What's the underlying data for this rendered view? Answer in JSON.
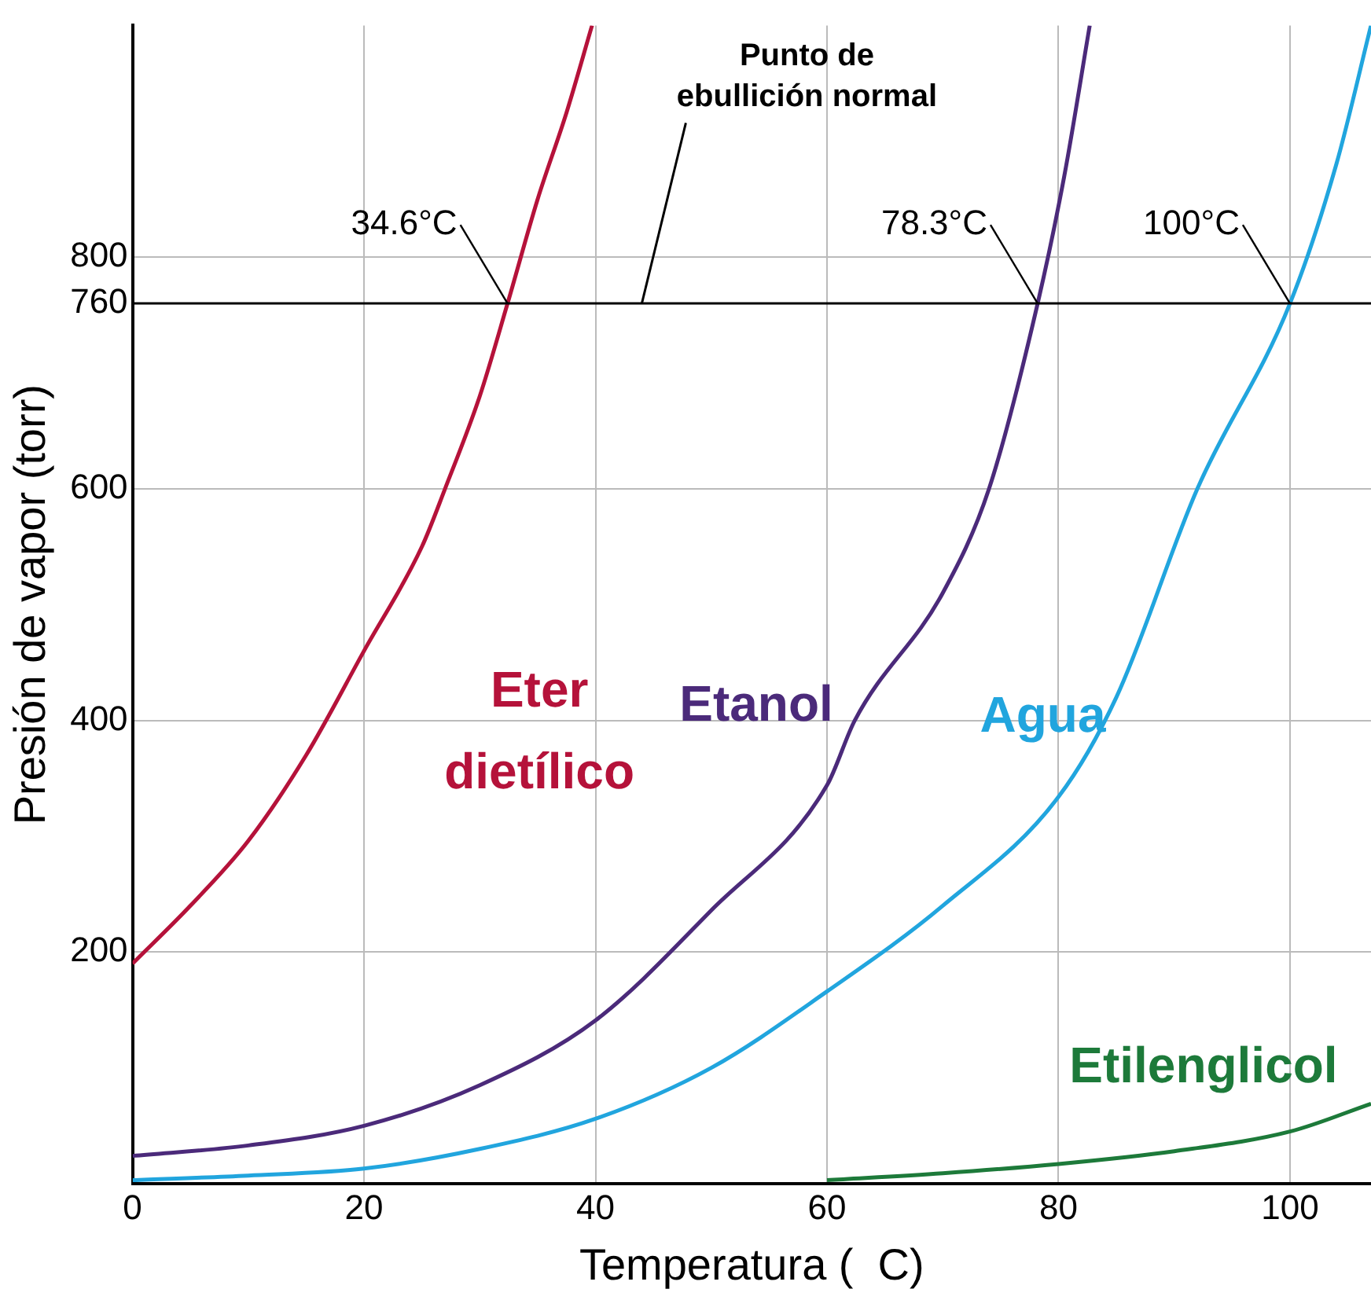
{
  "chart_data": {
    "type": "line",
    "xlabel": "Temperatura (  C)",
    "ylabel": "Presión de vapor (torr)",
    "xlim": [
      0,
      107
    ],
    "ylim": [
      0,
      1000
    ],
    "xticks": [
      0,
      20,
      40,
      60,
      80,
      100
    ],
    "yticks": [
      200,
      400,
      600,
      760,
      800
    ],
    "grid": true,
    "legend": false,
    "marker": "none",
    "line_style": "solid",
    "series": [
      {
        "name": "Eter dietílico",
        "color": "#b5123a",
        "x": [
          0,
          5,
          10,
          15,
          20,
          25,
          27,
          30,
          32.4,
          35,
          37.5,
          39.7
        ],
        "values": [
          190,
          240,
          296,
          370,
          460,
          550,
          600,
          680,
          760,
          850,
          925,
          1000
        ]
      },
      {
        "name": "Etanol",
        "color": "#4b2a7a",
        "x": [
          0,
          10,
          20,
          30,
          40,
          50,
          60,
          62.4,
          70,
          74,
          78.2,
          80.5,
          82.7
        ],
        "values": [
          24,
          33,
          50,
          85,
          141,
          236,
          344,
          400,
          510,
          600,
          760,
          870,
          1000
        ]
      },
      {
        "name": "Agua",
        "color": "#21a5de",
        "x": [
          0,
          10,
          20,
          30,
          40,
          50,
          60,
          70,
          80,
          85,
          92,
          100,
          104,
          107
        ],
        "values": [
          3,
          7,
          13,
          30,
          56,
          100,
          166,
          240,
          334,
          420,
          600,
          760,
          880,
          1000
        ]
      },
      {
        "name": "Etilenglicol",
        "color": "#1d7a3a",
        "x": [
          60,
          70,
          80,
          90,
          100,
          107
        ],
        "values": [
          3,
          9,
          17,
          28,
          45,
          69
        ]
      }
    ],
    "ref_lines": [
      {
        "axis": "y",
        "value": 760,
        "label": "Punto de ebullición normal",
        "color": "#000000"
      }
    ],
    "annotations": [
      {
        "text": "34.6°C",
        "x": 32.4,
        "y": 760
      },
      {
        "text": "78.3°C",
        "x": 78.2,
        "y": 760
      },
      {
        "text": "100°C",
        "x": 100,
        "y": 760
      }
    ]
  }
}
